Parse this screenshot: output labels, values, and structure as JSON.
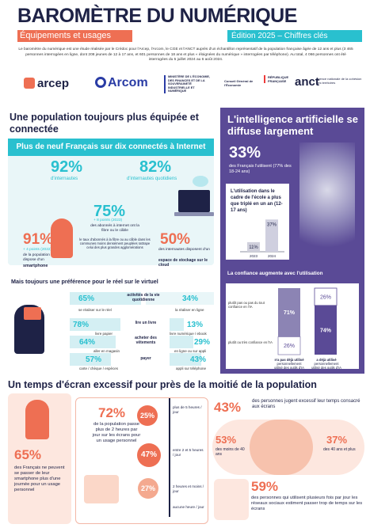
{
  "header": {
    "title": "BAROMÈTRE DU NUMÉRIQUE",
    "subtitle_left": "Équipements et usages",
    "subtitle_right": "Édition 2025 – Chiffres clés",
    "intro": "Le baromètre du numérique est une étude réalisée par le Crédoc pour l'Arcep, l'Arcom, le CGE et l'ANCT auprès d'un échantillon représentatif de la population française âgée de 12 ans et plus (3 465 personnes interrogées en ligne, dont 208 jeunes de 12 à 17 ans, et 601 personnes de 18 ans et plus « éloignées du numérique » interrogées par téléphone). Au total, 4 066 personnes ont été interrogées du 5 juillet 2024 au 6 août 2024."
  },
  "logos": {
    "arcep": "arcep",
    "arcom": "Arcom",
    "ministere": "MINISTÈRE DE L'ÉCONOMIE, DES FINANCES ET DE LA SOUVERAINETÉ INDUSTRIELLE ET NUMÉRIQUE",
    "cge": "Conseil Général de l'Économie",
    "republique": "RÉPUBLIQUE FRANÇAISE",
    "anct": "anct",
    "anct_text": "agence nationale de la cohésion des territoires"
  },
  "section1": {
    "heading": "Une population toujours plus équipée et connectée",
    "band": "Plus de neuf Français sur dix connectés à Internet",
    "stat1_value": "92%",
    "stat1_label": "d'internautes",
    "stat2_value": "82%",
    "stat2_label": "d'internautes quotidiens",
    "fibre_value": "75%",
    "fibre_delta": "+ 8 points (2023)",
    "fibre_text": "des abonnés à internet ont la fibre ou le câble",
    "fibre_note": "le taux d'abonnés à la fibre ou au câble dans les communes moins densément peuplées rattrape celui des plus grandes agglomérations",
    "smartphone_value": "91%",
    "smartphone_delta": "+ 4 points (2022)",
    "smartphone_text": "de la population dispose d'un",
    "smartphone_bold": "smartphone",
    "cloud_value": "50%",
    "cloud_text": "des internautes disposent d'un",
    "cloud_bold": "espace de stockage sur le cloud"
  },
  "reel": {
    "heading": "Mais toujours une préférence pour le réel sur le virtuel",
    "rows": [
      {
        "left_value": "65%",
        "left_label": "se réaliser sur le réel",
        "middle": "activités de la vie quotidienne",
        "right_value": "34%",
        "right_label": "la réaliser en ligne"
      },
      {
        "left_value": "78%",
        "left_label": "livre papier",
        "middle": "lire un livre",
        "right_value": "13%",
        "right_label": "livre numérique / ebook"
      },
      {
        "left_value": "64%",
        "left_label": "aller en magasin",
        "middle": "acheter des vêtements",
        "right_value": "29%",
        "right_label": "en ligne ou sur appli"
      },
      {
        "left_value": "57%",
        "left_label": "carte / chèque / espèces",
        "middle": "payer",
        "right_value": "43%",
        "right_label": "appli sur téléphone"
      }
    ]
  },
  "ai": {
    "heading": "L'intelligence artificielle se diffuse largement",
    "stat_value": "33%",
    "stat_text": "des Français l'utilisent (77% des 18-24 ans)",
    "school_heading": "L'utilisation dans le cadre de l'école a plus que triplé en un an (12-17 ans)",
    "school_chart": {
      "type": "bar",
      "categories": [
        "2023",
        "2024"
      ],
      "values": [
        11,
        37
      ],
      "labels": [
        "11%",
        "37%"
      ]
    },
    "confidence_heading": "La confiance augmente avec l'utilisation",
    "confidence_chart": {
      "type": "bar",
      "categories": [
        "n'a pas déjà utilisé personnellement utilisé des outils d'IA",
        "a déjà utilisé personnellement utilisé des outils d'IA"
      ],
      "series": [
        {
          "name": "plutôt pas ou pas du tout confiance en l'IA",
          "values": [
            71,
            26
          ]
        },
        {
          "name": "plutôt ou très confiance en l'IA",
          "values": [
            26,
            74
          ]
        }
      ],
      "labels_top": [
        "71%",
        "26%"
      ],
      "labels_bottom": [
        "26%",
        "74%"
      ],
      "legend_top": "plutôt pas ou pas du tout confiance en l'IA",
      "legend_bottom": "plutôt ou très confiance en l'IA",
      "cat1": "n'a pas déjà utilisé",
      "cat1_sub": "personnellement utilisé des outils d'IA",
      "cat2": "a déjà utilisé",
      "cat2_sub": "personnellement utilisé des outils d'IA"
    }
  },
  "section2": {
    "heading": "Un temps d'écran excessif pour près de la moitié de la population",
    "smartphone_value": "65%",
    "smartphone_text": "des Français ne peuvent se passer de leur smartphone plus d'une journée pour un usage personnel",
    "screen_value": "72%",
    "screen_text": "de la population passe plus de 2 heures par jour sur les écrans pour un usage personnel",
    "circles": [
      "25%",
      "47%",
      "27%"
    ],
    "circle_labels": [
      "plus de 5 heures / jour",
      "entre 2 et 5 heures / jour",
      "2 heures et moins / jour"
    ],
    "circle_bottom": "aucune heure / jour",
    "excess_value": "43%",
    "excess_text": "des personnes jugent excessif leur temps consacré aux écrans",
    "young_value": "53%",
    "young_label": "des moins de 40 ans",
    "old_value": "37%",
    "old_label": "des 40 ans et plus",
    "social_value": "59%",
    "social_text": "des personnes qui utilisent plusieurs fois par jour les réseaux sociaux estiment passer trop de temps sur les écrans"
  },
  "colors": {
    "navy": "#1e2246",
    "cyan": "#29c0cf",
    "salmon": "#ee6f53",
    "purple": "#5a4a96"
  }
}
